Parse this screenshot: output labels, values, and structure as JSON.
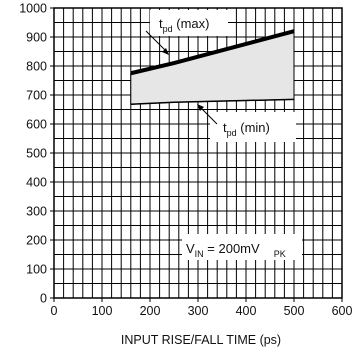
{
  "chart_data": {
    "type": "area",
    "xlabel": "INPUT RISE/FALL TIME (ps)",
    "ylabel": "",
    "xlim": [
      0,
      600
    ],
    "ylim": [
      0,
      1000
    ],
    "x_ticks": [
      0,
      100,
      200,
      300,
      400,
      500,
      600
    ],
    "y_ticks": [
      0,
      100,
      200,
      300,
      400,
      500,
      600,
      700,
      800,
      900,
      1000
    ],
    "grid": true,
    "series": [
      {
        "name": "t_pd (max)",
        "x": [
          160,
          250,
          500
        ],
        "values": [
          775,
          810,
          920
        ]
      },
      {
        "name": "t_pd (min)",
        "x": [
          160,
          250,
          500
        ],
        "values": [
          668,
          675,
          685
        ]
      }
    ],
    "annotations": {
      "max": {
        "main": "t",
        "sub": "pd",
        "rest": " (max)"
      },
      "min": {
        "main": "t",
        "sub": "pd",
        "rest": " (min)"
      },
      "condition": {
        "main": "V",
        "sub": "IN",
        "mid": " = 200mV",
        "sub2": "PK"
      }
    },
    "colors": {
      "fill": "#e6e6e6",
      "line": "#000000",
      "grid": "#000000"
    }
  }
}
